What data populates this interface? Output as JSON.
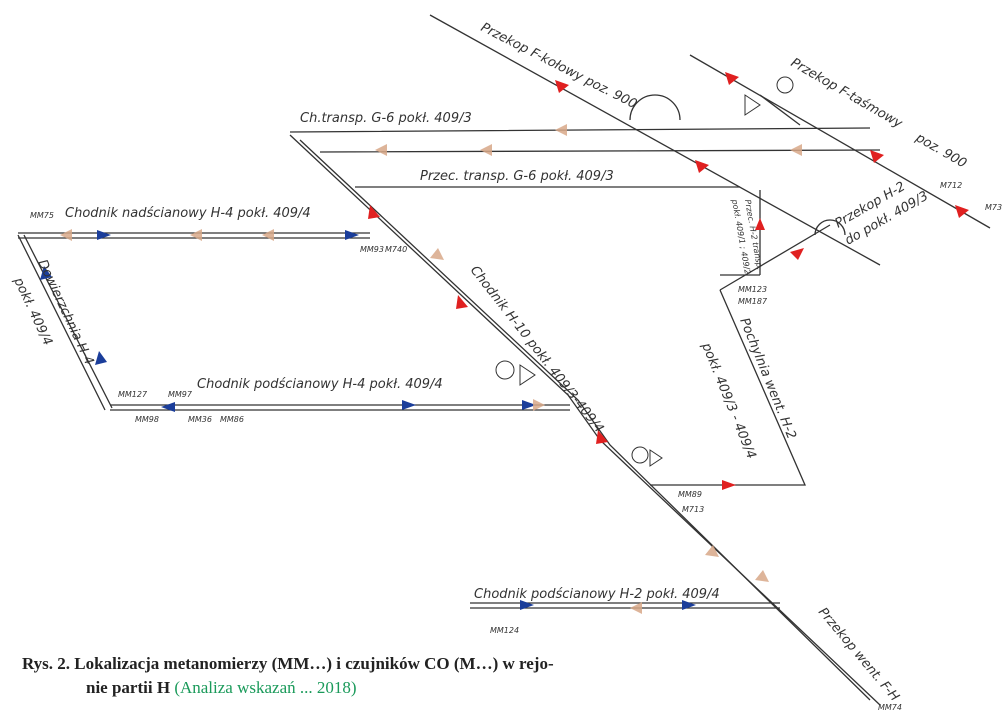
{
  "labels": {
    "f_kolowy": "Przekop F-kołowy poz. 900",
    "f_tasmowy": "Przekop F-taśmowy",
    "f_tasmowy_poz": "poz. 900",
    "g6_top": "Ch.transp. G-6 pokł. 409/3",
    "g6_przec": "Przec. transp. G-6 pokł. 409/3",
    "h4_nad": "Chodnik nadścianowy H-4 pokł. 409/4",
    "dowierzchnia": "Dowierzchnia H-4",
    "dowierzchnia_pokl": "pokł. 409/4",
    "h4_pod": "Chodnik podścianowy H-4 pokł. 409/4",
    "h10": "Chodnik H-10 pokł. 409/3-409/4",
    "przec_h2": "Przec. H-2 transp.",
    "przec_h2_pokl": "pokł. 409/1 ; 409/2",
    "przekop_h2": "Przekop H-2",
    "przekop_h2_pokl": "do pokł. 409/3",
    "pochylnia": "Pochylnia went. H-2",
    "pochylnia_pokl": "pokł. 409/3 - 409/4",
    "h2_pod": "Chodnik podścianowy H-2 pokł. 409/4",
    "went_fh": "Przekop went. F-H"
  },
  "sensors": [
    "MM75",
    "MM93",
    "M740",
    "MM127",
    "MM97",
    "MM98",
    "MM36",
    "MM86",
    "MM123",
    "MM187",
    "MM89",
    "M713",
    "MM124",
    "MM74",
    "M712",
    "M73"
  ],
  "caption": {
    "lines": [
      "Rys. 2. Lokalizacja metanomierzy (MM…) i czujników CO (M…) w rejo-",
      "nie partii H"
    ],
    "source": "(Analiza wskazań ... 2018)"
  }
}
